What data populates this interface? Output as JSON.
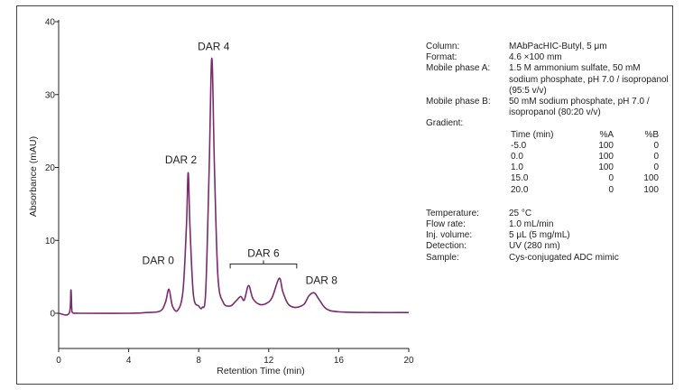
{
  "chart_data": {
    "type": "line",
    "xlabel": "Retention Time (min)",
    "ylabel": "Absorbance (mAU)",
    "xlim": [
      0,
      20
    ],
    "ylim": [
      -2,
      40
    ],
    "xticks": [
      0,
      4,
      8,
      12,
      16,
      20
    ],
    "yticks": [
      0,
      10,
      20,
      30,
      40
    ],
    "grid": false,
    "series": [
      {
        "color": "#7b2a6e",
        "points": [
          [
            0.0,
            0.0
          ],
          [
            0.6,
            0.0
          ],
          [
            0.7,
            3.2
          ],
          [
            0.75,
            0.6
          ],
          [
            0.8,
            0.1
          ],
          [
            1.2,
            0.0
          ],
          [
            4.0,
            0.0
          ],
          [
            5.0,
            0.1
          ],
          [
            5.8,
            0.3
          ],
          [
            6.1,
            1.5
          ],
          [
            6.3,
            3.3
          ],
          [
            6.5,
            1.0
          ],
          [
            6.8,
            0.4
          ],
          [
            7.1,
            3.0
          ],
          [
            7.3,
            12.0
          ],
          [
            7.4,
            19.3
          ],
          [
            7.5,
            12.0
          ],
          [
            7.7,
            2.5
          ],
          [
            8.0,
            1.0
          ],
          [
            8.2,
            0.8
          ],
          [
            8.4,
            3.0
          ],
          [
            8.6,
            20.0
          ],
          [
            8.75,
            35.0
          ],
          [
            8.9,
            20.0
          ],
          [
            9.1,
            5.0
          ],
          [
            9.4,
            1.5
          ],
          [
            9.8,
            1.0
          ],
          [
            10.1,
            1.6
          ],
          [
            10.4,
            2.3
          ],
          [
            10.6,
            1.8
          ],
          [
            10.85,
            3.8
          ],
          [
            11.1,
            2.0
          ],
          [
            11.5,
            1.2
          ],
          [
            11.9,
            1.4
          ],
          [
            12.2,
            2.2
          ],
          [
            12.6,
            4.8
          ],
          [
            12.8,
            3.0
          ],
          [
            13.1,
            1.3
          ],
          [
            13.5,
            0.8
          ],
          [
            14.0,
            1.2
          ],
          [
            14.3,
            2.4
          ],
          [
            14.6,
            2.8
          ],
          [
            14.9,
            1.8
          ],
          [
            15.3,
            0.6
          ],
          [
            16.0,
            0.2
          ],
          [
            18.0,
            0.1
          ],
          [
            20.0,
            0.1
          ]
        ]
      }
    ],
    "annotations": [
      {
        "text": "DAR 0",
        "x": 6.3,
        "y": 3.3
      },
      {
        "text": "DAR 2",
        "x": 7.4,
        "y": 19.3
      },
      {
        "text": "DAR 4",
        "x": 8.75,
        "y": 35.0
      },
      {
        "text": "DAR 6",
        "x": 11.7,
        "y": 6.4,
        "bracket": [
          9.8,
          13.6
        ]
      },
      {
        "text": "DAR 8",
        "x": 14.6,
        "y": 2.8
      }
    ]
  },
  "info": {
    "rows": [
      {
        "key": "Column:",
        "value": "MAbPacHIC-Butyl, 5 μm"
      },
      {
        "key": "Format:",
        "value": "4.6 ×100 mm"
      },
      {
        "key": "Mobile phase A:",
        "value": "1.5 M ammonium sulfate, 50 mM sodium phosphate, pH 7.0 / isopropanol (95:5 v/v)"
      },
      {
        "key": "Mobile phase B:",
        "value": "50 mM sodium phosphate, pH 7.0 / isopropanol (80:20 v/v)"
      },
      {
        "key": "Gradient:",
        "value": ""
      }
    ],
    "gradient": {
      "headers": [
        "Time (min)",
        "%A",
        "%B"
      ],
      "rows": [
        [
          "-5.0",
          "100",
          "0"
        ],
        [
          "0.0",
          "100",
          "0"
        ],
        [
          "1.0",
          "100",
          "0"
        ],
        [
          "15.0",
          "0",
          "100"
        ],
        [
          "20.0",
          "0",
          "100"
        ]
      ]
    },
    "rows2": [
      {
        "key": "Temperature:",
        "value": "25 °C"
      },
      {
        "key": "Flow rate:",
        "value": "1.0 mL/min"
      },
      {
        "key": "Inj. volume:",
        "value": "5 μL (5 mg/mL)"
      },
      {
        "key": "Detection:",
        "value": "UV (280 nm)"
      },
      {
        "key": "Sample:",
        "value": "Cys-conjugated ADC mimic"
      }
    ]
  }
}
